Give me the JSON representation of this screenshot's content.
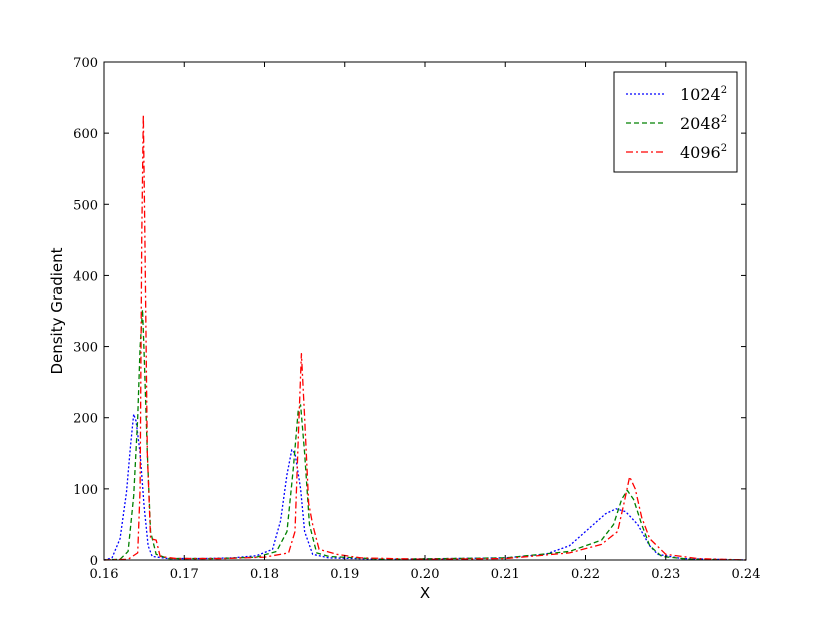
{
  "chart_data": {
    "type": "line",
    "xlabel": "X",
    "ylabel": "Density Gradient",
    "xlim": [
      0.16,
      0.24
    ],
    "ylim": [
      0,
      700
    ],
    "xticks": [
      "0.16",
      "0.17",
      "0.18",
      "0.19",
      "0.20",
      "0.21",
      "0.22",
      "0.23",
      "0.24"
    ],
    "yticks": [
      "0",
      "100",
      "200",
      "300",
      "400",
      "500",
      "600",
      "700"
    ],
    "grid": false,
    "legend_position": "top-right",
    "series": [
      {
        "name": "1024",
        "name_sup": "2",
        "color": "#0000ff",
        "dash": "dotted",
        "points": [
          [
            0.16,
            0
          ],
          [
            0.161,
            3
          ],
          [
            0.162,
            30
          ],
          [
            0.1628,
            95
          ],
          [
            0.1633,
            160
          ],
          [
            0.1637,
            205
          ],
          [
            0.164,
            195
          ],
          [
            0.1645,
            150
          ],
          [
            0.165,
            75
          ],
          [
            0.1655,
            20
          ],
          [
            0.166,
            5
          ],
          [
            0.168,
            2
          ],
          [
            0.172,
            2
          ],
          [
            0.176,
            3
          ],
          [
            0.179,
            6
          ],
          [
            0.181,
            15
          ],
          [
            0.182,
            55
          ],
          [
            0.1828,
            120
          ],
          [
            0.1834,
            155
          ],
          [
            0.1838,
            150
          ],
          [
            0.1845,
            100
          ],
          [
            0.185,
            40
          ],
          [
            0.186,
            8
          ],
          [
            0.188,
            3
          ],
          [
            0.195,
            1
          ],
          [
            0.21,
            3
          ],
          [
            0.215,
            8
          ],
          [
            0.218,
            20
          ],
          [
            0.22,
            40
          ],
          [
            0.2225,
            65
          ],
          [
            0.2238,
            72
          ],
          [
            0.225,
            68
          ],
          [
            0.2265,
            50
          ],
          [
            0.228,
            20
          ],
          [
            0.229,
            8
          ],
          [
            0.232,
            2
          ],
          [
            0.24,
            0
          ]
        ]
      },
      {
        "name": "2048",
        "name_sup": "2",
        "color": "#008000",
        "dash": "dashed",
        "points": [
          [
            0.16,
            0
          ],
          [
            0.162,
            1
          ],
          [
            0.163,
            12
          ],
          [
            0.1637,
            90
          ],
          [
            0.1642,
            200
          ],
          [
            0.1645,
            300
          ],
          [
            0.1648,
            352
          ],
          [
            0.165,
            290
          ],
          [
            0.1654,
            150
          ],
          [
            0.1658,
            40
          ],
          [
            0.1665,
            8
          ],
          [
            0.168,
            2
          ],
          [
            0.174,
            2
          ],
          [
            0.179,
            4
          ],
          [
            0.1815,
            12
          ],
          [
            0.1828,
            40
          ],
          [
            0.1836,
            130
          ],
          [
            0.1842,
            210
          ],
          [
            0.1845,
            218
          ],
          [
            0.185,
            150
          ],
          [
            0.1856,
            50
          ],
          [
            0.1865,
            10
          ],
          [
            0.188,
            5
          ],
          [
            0.195,
            1
          ],
          [
            0.21,
            3
          ],
          [
            0.218,
            12
          ],
          [
            0.222,
            28
          ],
          [
            0.2235,
            50
          ],
          [
            0.2245,
            85
          ],
          [
            0.2252,
            98
          ],
          [
            0.226,
            85
          ],
          [
            0.227,
            50
          ],
          [
            0.228,
            20
          ],
          [
            0.2295,
            5
          ],
          [
            0.233,
            1
          ],
          [
            0.24,
            0
          ]
        ]
      },
      {
        "name": "4096",
        "name_sup": "2",
        "color": "#ff0000",
        "dash": "dashdot",
        "points": [
          [
            0.16,
            0
          ],
          [
            0.163,
            1
          ],
          [
            0.1642,
            10
          ],
          [
            0.1645,
            100
          ],
          [
            0.1647,
            450
          ],
          [
            0.1649,
            626
          ],
          [
            0.1651,
            450
          ],
          [
            0.1654,
            150
          ],
          [
            0.1658,
            30
          ],
          [
            0.1665,
            28
          ],
          [
            0.167,
            5
          ],
          [
            0.169,
            2
          ],
          [
            0.175,
            2
          ],
          [
            0.18,
            4
          ],
          [
            0.183,
            10
          ],
          [
            0.1838,
            40
          ],
          [
            0.1843,
            200
          ],
          [
            0.1846,
            290
          ],
          [
            0.185,
            200
          ],
          [
            0.1855,
            80
          ],
          [
            0.186,
            50
          ],
          [
            0.1868,
            15
          ],
          [
            0.189,
            8
          ],
          [
            0.192,
            3
          ],
          [
            0.2,
            1
          ],
          [
            0.21,
            2
          ],
          [
            0.218,
            10
          ],
          [
            0.222,
            22
          ],
          [
            0.224,
            40
          ],
          [
            0.2248,
            80
          ],
          [
            0.2255,
            117
          ],
          [
            0.2262,
            100
          ],
          [
            0.227,
            60
          ],
          [
            0.228,
            30
          ],
          [
            0.23,
            8
          ],
          [
            0.234,
            2
          ],
          [
            0.24,
            0
          ]
        ]
      }
    ]
  }
}
